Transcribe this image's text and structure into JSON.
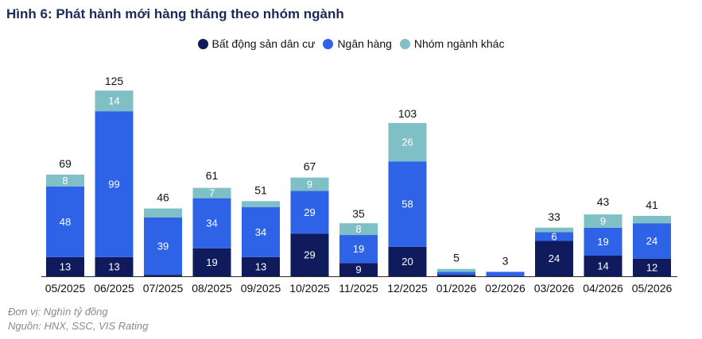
{
  "title": "Hình 6: Phát hành mới hàng tháng theo nhóm ngành",
  "footnote": {
    "unit": "Đơn vị: Nghìn tỷ đồng",
    "source": "Nguồn: HNX, SSC, VIS Rating"
  },
  "colors": {
    "real_estate": "#0f1b5c",
    "banks": "#2e63e8",
    "other": "#7fbfc6"
  },
  "chart_data": {
    "type": "bar",
    "stacked": true,
    "categories": [
      "05/2025",
      "06/2025",
      "07/2025",
      "08/2025",
      "09/2025",
      "10/2025",
      "11/2025",
      "12/2025",
      "01/2026",
      "02/2026",
      "03/2026",
      "04/2026",
      "05/2026"
    ],
    "series": [
      {
        "name": "Bất động sản dân cư",
        "values": [
          13,
          13,
          1,
          19,
          13,
          29,
          9,
          20,
          1,
          0,
          24,
          14,
          12
        ],
        "labels": [
          "13",
          "13",
          "",
          "19",
          "13",
          "29",
          "9",
          "20",
          "",
          "",
          "24",
          "14",
          "12"
        ]
      },
      {
        "name": "Ngân hàng",
        "values": [
          48,
          99,
          39,
          34,
          34,
          29,
          19,
          58,
          2,
          3,
          6,
          19,
          24
        ],
        "labels": [
          "48",
          "99",
          "39",
          "34",
          "34",
          "29",
          "19",
          "58",
          "",
          "",
          "6",
          "19",
          "24"
        ]
      },
      {
        "name": "Nhóm ngành khác",
        "values": [
          8,
          14,
          6,
          7,
          4,
          9,
          8,
          26,
          2,
          0,
          3,
          9,
          5
        ],
        "labels": [
          "8",
          "14",
          "",
          "7",
          "",
          "9",
          "8",
          "26",
          "",
          "",
          "",
          "9",
          ""
        ]
      }
    ],
    "totals": [
      69,
      125,
      46,
      61,
      51,
      67,
      35,
      103,
      5,
      3,
      33,
      43,
      41
    ],
    "ylim": [
      0,
      125
    ],
    "grid": false,
    "legend_position": "top-center"
  }
}
